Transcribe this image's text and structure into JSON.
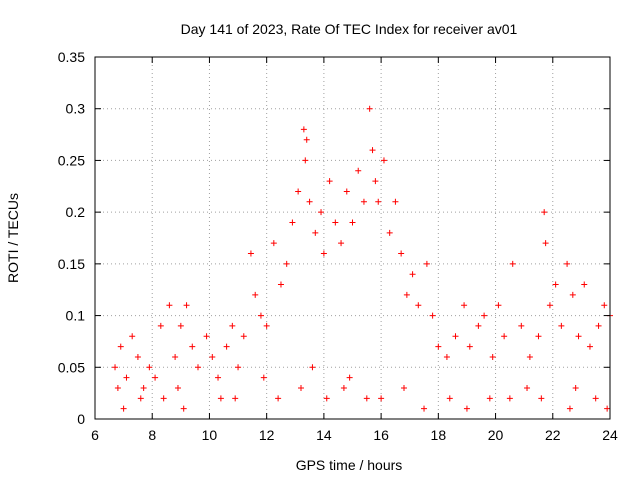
{
  "chart_data": {
    "type": "scatter",
    "title": "Day 141 of 2023, Rate Of TEC Index for receiver av01",
    "xlabel": "GPS time / hours",
    "ylabel": "ROTI / TECUs",
    "xlim": [
      6,
      24
    ],
    "ylim": [
      0,
      0.35
    ],
    "x_ticks": [
      6,
      8,
      10,
      12,
      14,
      16,
      18,
      20,
      22,
      24
    ],
    "y_ticks": [
      0,
      0.05,
      0.1,
      0.15,
      0.2,
      0.25,
      0.3,
      0.35
    ],
    "x_tick_labels": [
      "6",
      "8",
      "10",
      "12",
      "14",
      "16",
      "18",
      "20",
      "22",
      "24"
    ],
    "y_tick_labels": [
      "0",
      "0.05",
      "0.1",
      "0.15",
      "0.2",
      "0.25",
      "0.3",
      "0.35"
    ],
    "grid": true,
    "marker": "+",
    "marker_color": "#ff0000",
    "series": [
      {
        "name": "ROTI",
        "x": [
          6.7,
          6.9,
          7.1,
          7.3,
          7.5,
          7.7,
          7.9,
          8.1,
          8.3,
          8.6,
          8.8,
          9.0,
          9.2,
          9.4,
          9.6,
          9.9,
          10.1,
          10.3,
          10.6,
          10.8,
          11.0,
          11.2,
          11.45,
          11.6,
          11.8,
          12.0,
          12.25,
          12.5,
          12.7,
          12.9,
          13.1,
          13.3,
          13.35,
          13.4,
          13.5,
          13.7,
          13.9,
          14.0,
          14.2,
          14.4,
          14.6,
          14.8,
          15.0,
          15.2,
          15.4,
          15.6,
          15.7,
          15.8,
          15.9,
          16.1,
          16.3,
          16.5,
          16.7,
          16.9,
          17.1,
          17.3,
          17.6,
          17.8,
          18.0,
          18.3,
          18.6,
          18.9,
          19.1,
          19.4,
          19.6,
          19.9,
          20.1,
          20.3,
          20.6,
          20.9,
          21.2,
          21.5,
          21.7,
          21.75,
          21.9,
          22.1,
          22.3,
          22.5,
          22.7,
          22.9,
          23.1,
          23.3,
          23.6,
          23.8,
          24.0,
          7.0,
          8.4,
          9.1,
          10.9,
          12.4,
          13.2,
          14.1,
          14.7,
          15.5,
          16.0,
          17.5,
          19.0,
          20.5,
          21.6,
          22.6,
          23.9,
          6.8,
          7.6,
          8.9,
          10.4,
          11.9,
          13.6,
          14.9,
          16.8,
          18.4,
          19.8,
          21.1,
          22.8,
          23.5
        ],
        "y": [
          0.05,
          0.07,
          0.04,
          0.08,
          0.06,
          0.03,
          0.05,
          0.04,
          0.09,
          0.11,
          0.06,
          0.09,
          0.11,
          0.07,
          0.05,
          0.08,
          0.06,
          0.04,
          0.07,
          0.09,
          0.05,
          0.08,
          0.16,
          0.12,
          0.1,
          0.09,
          0.17,
          0.13,
          0.15,
          0.19,
          0.22,
          0.28,
          0.25,
          0.27,
          0.21,
          0.18,
          0.2,
          0.16,
          0.23,
          0.19,
          0.17,
          0.22,
          0.19,
          0.24,
          0.21,
          0.3,
          0.26,
          0.23,
          0.21,
          0.25,
          0.18,
          0.21,
          0.16,
          0.12,
          0.14,
          0.11,
          0.15,
          0.1,
          0.07,
          0.06,
          0.08,
          0.11,
          0.07,
          0.09,
          0.1,
          0.06,
          0.11,
          0.08,
          0.15,
          0.09,
          0.06,
          0.08,
          0.2,
          0.17,
          0.11,
          0.13,
          0.09,
          0.15,
          0.12,
          0.08,
          0.13,
          0.07,
          0.09,
          0.11,
          0.1,
          0.01,
          0.02,
          0.01,
          0.02,
          0.02,
          0.03,
          0.02,
          0.03,
          0.02,
          0.02,
          0.01,
          0.01,
          0.02,
          0.02,
          0.01,
          0.01,
          0.03,
          0.02,
          0.03,
          0.02,
          0.04,
          0.05,
          0.04,
          0.03,
          0.02,
          0.02,
          0.03,
          0.03,
          0.02
        ]
      }
    ]
  }
}
